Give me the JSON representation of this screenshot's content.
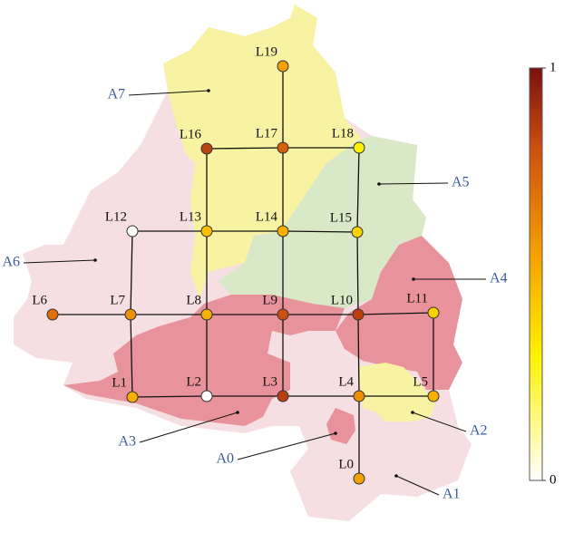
{
  "nodes": [
    {
      "label": "L0",
      "value": 0.55
    },
    {
      "label": "L1",
      "value": 0.5
    },
    {
      "label": "L2",
      "value": 0
    },
    {
      "label": "L3",
      "value": 0.85
    },
    {
      "label": "L4",
      "value": 0.6
    },
    {
      "label": "L5",
      "value": 0.5
    },
    {
      "label": "L6",
      "value": 0.7
    },
    {
      "label": "L7",
      "value": 0.6
    },
    {
      "label": "L8",
      "value": 0.5
    },
    {
      "label": "L9",
      "value": 0.8
    },
    {
      "label": "L10",
      "value": 0.85
    },
    {
      "label": "L11",
      "value": 0.4
    },
    {
      "label": "L12",
      "value": 0
    },
    {
      "label": "L13",
      "value": 0.45
    },
    {
      "label": "L14",
      "value": 0.5
    },
    {
      "label": "L15",
      "value": 0.4
    },
    {
      "label": "L16",
      "value": 0.85
    },
    {
      "label": "L17",
      "value": 0.75
    },
    {
      "label": "L18",
      "value": 0.3
    },
    {
      "label": "L19",
      "value": 0.55
    }
  ],
  "areas": [
    {
      "label": "A0"
    },
    {
      "label": "A1"
    },
    {
      "label": "A2"
    },
    {
      "label": "A3"
    },
    {
      "label": "A4"
    },
    {
      "label": "A5"
    },
    {
      "label": "A6"
    },
    {
      "label": "A7"
    }
  ],
  "colorbar": {
    "range": [
      0,
      1
    ],
    "ticks": [
      0,
      1
    ]
  }
}
